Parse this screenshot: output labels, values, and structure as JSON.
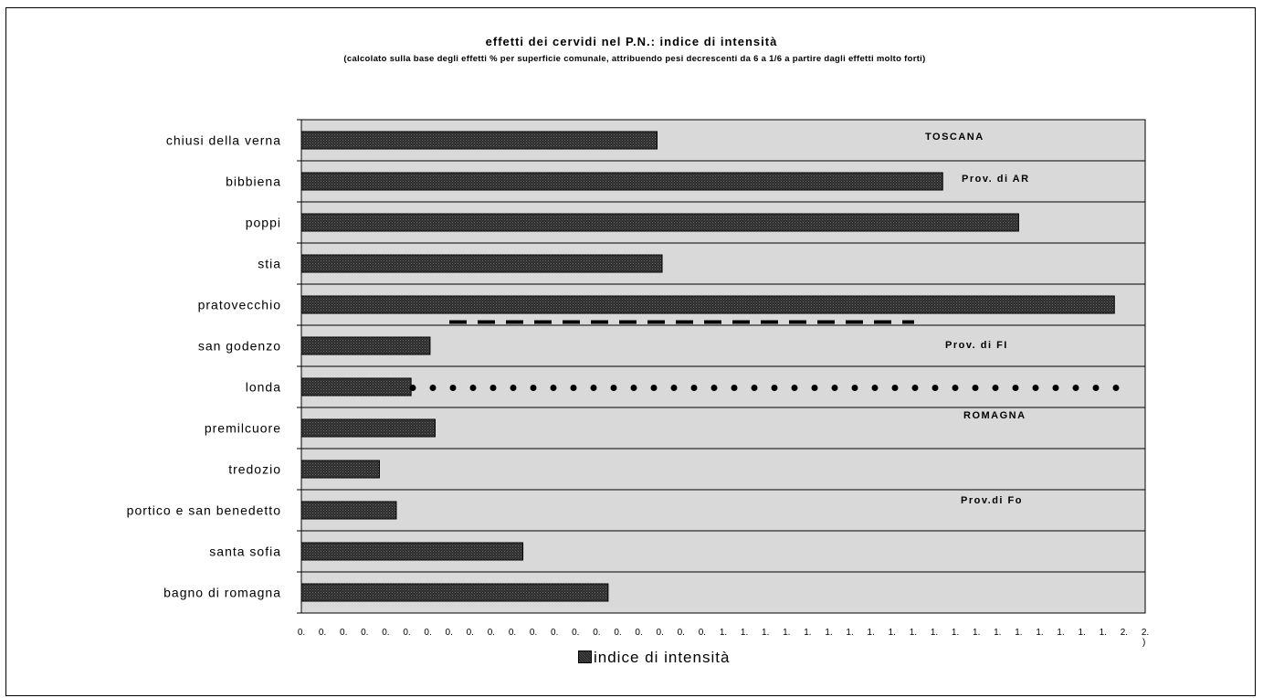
{
  "chart_data": {
    "type": "bar",
    "orientation": "horizontal",
    "title": "effetti dei cervidi  nel P.N.:  indice di intensità",
    "subtitle": "(calcolato sulla base degli effetti % per superficie comunale, attribuendo pesi decrescenti da 6 a 1/6 a partire dagli effetti molto forti)",
    "categories": [
      "chiusi della verna",
      "bibbiena",
      "poppi",
      "stia",
      "pratovecchio",
      "san godenzo",
      "londa",
      "premilcuore",
      "tredozio",
      "portico e san benedetto",
      "santa sofia",
      "bagno di romagna"
    ],
    "series": [
      {
        "name": "indice di intensità",
        "values": [
          0.843,
          1.52,
          1.7,
          0.855,
          1.927,
          0.305,
          0.26,
          0.317,
          0.185,
          0.225,
          0.525,
          0.727
        ]
      }
    ],
    "xlim": [
      0,
      2.0
    ],
    "x_ticks": [
      0,
      0.05,
      0.1,
      0.15,
      0.2,
      0.25,
      0.3,
      0.35,
      0.4,
      0.45,
      0.5,
      0.55,
      0.6,
      0.65,
      0.7,
      0.75,
      0.8,
      0.85,
      0.9,
      0.95,
      1.0,
      1.05,
      1.1,
      1.15,
      1.2,
      1.25,
      1.3,
      1.35,
      1.4,
      1.45,
      1.5,
      1.55,
      1.6,
      1.65,
      1.7,
      1.75,
      1.8,
      1.85,
      1.9,
      1.95,
      2.0
    ],
    "x_tick_labels": [
      "0.",
      "0.",
      "0.",
      "0.",
      "0.",
      "0.",
      "0.",
      "0.",
      "0.",
      "0.",
      "0.",
      "0.",
      "0.",
      "0.",
      "0.",
      "0.",
      "0.",
      "0.",
      "0.",
      "0.",
      "1.",
      "1.",
      "1.",
      "1.",
      "1.",
      "1.",
      "1.",
      "1.",
      "1.",
      "1.",
      "1.",
      "1.",
      "1.",
      "1.",
      "1.",
      "1.",
      "1.",
      "1.",
      "1.",
      "2.",
      "2."
    ],
    "x_tick_clipped": ")",
    "grid": "horizontal separators between categories",
    "legend": {
      "position": "bottom",
      "label": "indice di intensità"
    },
    "annotations": [
      "TOSCANA",
      "Prov. di AR",
      "Prov. di FI",
      "ROMAGNA",
      "Prov.di Fo"
    ],
    "separators": [
      {
        "style": "dashed",
        "after_category": "pratovecchio"
      },
      {
        "style": "dotted",
        "through_category": "londa"
      }
    ],
    "colors": {
      "plot_background": "#d9d9d9",
      "bar_fill": "#3a3a3a",
      "frame": "#000000"
    }
  }
}
